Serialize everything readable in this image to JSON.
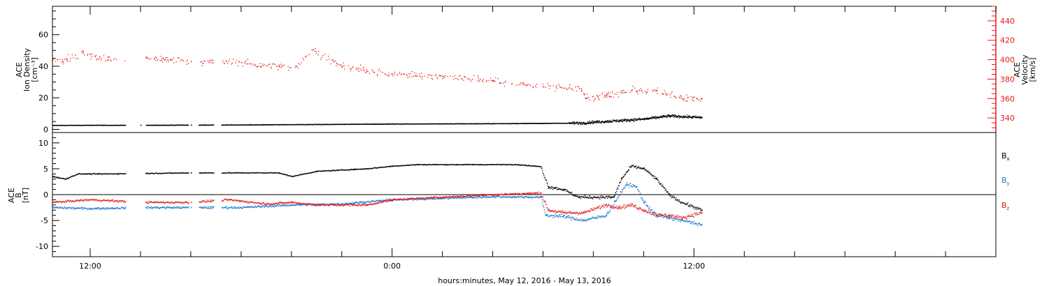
{
  "x_axis": {
    "label": "hours:minutes, May 12, 2016 - May 13, 2016",
    "range_hours": [
      10.5,
      48
    ],
    "major_ticks": [
      {
        "hour": 12,
        "label": "12:00"
      },
      {
        "hour": 24,
        "label": "0:00"
      },
      {
        "hour": 36,
        "label": "12:00"
      }
    ],
    "minor_tick_step_hours": 2
  },
  "top_panel": {
    "left_axis_label": [
      "ACE",
      "Ion Density",
      "[cm⁻³]"
    ],
    "right_axis_label": [
      "ACE",
      "Velocity",
      "[km/s]"
    ],
    "right_axis_color": "#e31a1c"
  },
  "bottom_panel": {
    "left_axis_label": [
      "ACE",
      "B",
      "[nT]"
    ],
    "legend": [
      {
        "key": "bx",
        "main": "B",
        "sub": "x",
        "color": "#000000"
      },
      {
        "key": "by",
        "main": "B",
        "sub": "y",
        "color": "#1f78d1"
      },
      {
        "key": "bz",
        "main": "B",
        "sub": "z",
        "color": "#e31a1c"
      }
    ]
  },
  "chart_data": [
    {
      "type": "scatter",
      "title": "",
      "xlabel": "hours:minutes, May 12, 2016 - May 13, 2016",
      "ylabel": "ACE Ion Density [cm⁻³]",
      "ylim": [
        -2,
        78
      ],
      "yticks": [
        0,
        20,
        40,
        60
      ],
      "y2label": "ACE Velocity [km/s]",
      "y2lim": [
        325,
        455
      ],
      "y2ticks": [
        340,
        360,
        380,
        400,
        420,
        440
      ],
      "gaps_hours": [
        [
          13.4,
          14.2
        ],
        [
          15.9,
          16.3
        ],
        [
          16.9,
          17.2
        ]
      ],
      "series": [
        {
          "name": "Ion Density",
          "axis": "left",
          "color": "#000000",
          "x": [
            10.5,
            12,
            14,
            16,
            18,
            20,
            22,
            24,
            26,
            28,
            30,
            31.6,
            31.9,
            32.5,
            34,
            35,
            36.3
          ],
          "y": [
            2.5,
            2.6,
            2.6,
            2.7,
            2.8,
            3.0,
            3.2,
            3.4,
            3.5,
            3.6,
            3.8,
            4.0,
            4.5,
            5.0,
            6.5,
            8.5,
            7.5
          ]
        },
        {
          "name": "Velocity",
          "axis": "right",
          "color": "#e31a1c",
          "x": [
            10.5,
            10.9,
            11.7,
            12.7,
            14.2,
            16.0,
            18.0,
            19.5,
            20.2,
            20.8,
            22.0,
            24.0,
            26.0,
            28.0,
            30.0,
            31.5,
            31.7,
            32.5,
            33.5,
            34.5,
            35.5,
            36.3
          ],
          "y": [
            400,
            398,
            407,
            400,
            402,
            398,
            397,
            393,
            393,
            410,
            393,
            385,
            383,
            378,
            372,
            370,
            360,
            363,
            368,
            368,
            360,
            360
          ]
        }
      ]
    },
    {
      "type": "scatter",
      "title": "",
      "xlabel": "hours:minutes, May 12, 2016 - May 13, 2016",
      "ylabel": "ACE B [nT]",
      "ylim": [
        -12,
        12
      ],
      "yticks": [
        -10,
        -5,
        0,
        5,
        10
      ],
      "reference_line_y": 0,
      "gaps_hours": [
        [
          13.4,
          14.2
        ],
        [
          15.9,
          16.3
        ],
        [
          16.9,
          17.2
        ]
      ],
      "series": [
        {
          "name": "Bx",
          "color": "#000000",
          "x": [
            10.5,
            11.0,
            11.5,
            12.5,
            14.2,
            16.0,
            18.0,
            19.5,
            20.0,
            21.0,
            23.0,
            24.0,
            25.0,
            27.0,
            28.0,
            29.0,
            29.9,
            30.2,
            30.8,
            31.4,
            32.0,
            32.8,
            33.1,
            33.5,
            34.0,
            34.5,
            35.0,
            35.5,
            36.3
          ],
          "y": [
            3.5,
            3.0,
            4.0,
            4.0,
            4.1,
            4.2,
            4.2,
            4.2,
            3.5,
            4.5,
            5.0,
            5.5,
            5.8,
            5.8,
            5.8,
            5.8,
            5.4,
            1.5,
            1.0,
            -0.5,
            -0.5,
            -0.5,
            3.0,
            5.5,
            5.0,
            3.0,
            0.0,
            -1.5,
            -3.0
          ]
        },
        {
          "name": "By",
          "color": "#1f78d1",
          "x": [
            10.5,
            12.0,
            14.2,
            16.0,
            18.0,
            20.0,
            22.0,
            24.0,
            26.0,
            28.0,
            29.9,
            30.1,
            30.8,
            31.6,
            32.5,
            33.3,
            33.7,
            34.0,
            34.5,
            35.0,
            35.5,
            36.3
          ],
          "y": [
            -2.5,
            -2.7,
            -2.5,
            -2.5,
            -2.5,
            -2.0,
            -1.8,
            -1.0,
            -0.7,
            -0.4,
            -0.5,
            -4.0,
            -4.2,
            -5.0,
            -4.0,
            2.0,
            1.5,
            -1.5,
            -4.0,
            -4.5,
            -5.0,
            -5.8
          ]
        },
        {
          "name": "Bz",
          "color": "#e31a1c",
          "x": [
            10.5,
            12.0,
            14.2,
            16.0,
            17.5,
            19.0,
            20.0,
            21.0,
            23.0,
            24.0,
            26.0,
            28.0,
            29.9,
            30.2,
            30.8,
            31.6,
            32.5,
            33.0,
            33.5,
            34.0,
            34.5,
            35.0,
            35.5,
            36.3
          ],
          "y": [
            -1.5,
            -1.0,
            -1.5,
            -1.5,
            -1.0,
            -1.8,
            -1.5,
            -2.0,
            -2.0,
            -1.0,
            -0.5,
            0.0,
            0.3,
            -3.0,
            -3.5,
            -3.5,
            -2.0,
            -2.5,
            -2.0,
            -3.0,
            -4.0,
            -4.0,
            -4.5,
            -3.5
          ]
        }
      ]
    }
  ]
}
